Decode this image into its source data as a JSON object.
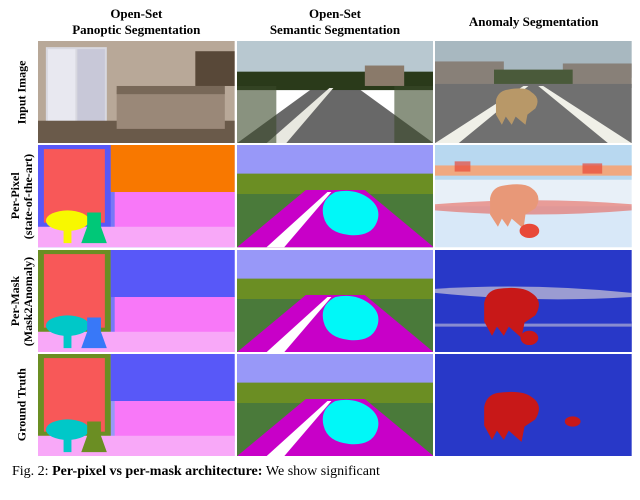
{
  "headers": {
    "cols": [
      "Open-Set\nPanoptic Segmentation",
      "Open-Set\nSemantic Segmentation",
      "Anomaly Segmentation"
    ],
    "rows": [
      "Input Image",
      "Per-Pixel\n(state-of-the-art)",
      "Per-Mask\n(Mask2Anomaly)",
      "Ground Truth"
    ]
  },
  "caption": {
    "prefix": "Fig. 2: ",
    "bold": "Per-pixel vs per-mask architecture: ",
    "rest": "We show significant"
  },
  "cells": {
    "r1c1": {
      "type": "photo-bedroom",
      "bg": "#8a7a6a",
      "window": "#d8d8e0",
      "bed": "#9a8878",
      "floor": "#6a5a4a",
      "wall": "#b8a898"
    },
    "r1c2": {
      "type": "photo-road",
      "sky": "#b8c8d0",
      "trees": "#2a3a1a",
      "road": "#686868",
      "line": "#e8e8e0",
      "building": "#8a7a6a"
    },
    "r1c3": {
      "type": "photo-road-cow",
      "sky": "#a8b8c0",
      "building": "#888078",
      "trees": "#4a5a3a",
      "road": "#707070",
      "cow": "#b89868",
      "line": "#f0f0e8"
    },
    "r2c1": {
      "type": "seg-bedroom",
      "bg": "#7878f8",
      "window": "#f85858",
      "bed": "#f878f8",
      "table": "#f8f800",
      "chair": "#00c878",
      "floor": "#f8a8f8",
      "wall": "#5858f8",
      "misc": "#f87800"
    },
    "r2c2": {
      "type": "seg-road",
      "sky": "#9898f8",
      "trees": "#6b8e23",
      "road": "#c800c8",
      "blob": "#00f8f8",
      "line": "#ffffff",
      "ground": "#4a7a3a"
    },
    "r2c3": {
      "type": "heatmap",
      "bg_cool": "#e8f0f8",
      "bg_mid": "#b8d8f0",
      "hot": "#e84838",
      "warm": "#f0a880",
      "cow_fill": "#e89878",
      "road": "#d8e8f8"
    },
    "r3c1": {
      "type": "seg-bedroom",
      "bg": "#7878f8",
      "window": "#f85858",
      "bed": "#f878f8",
      "table": "#00c8c8",
      "chair": "#3878f8",
      "floor": "#f8a8f8",
      "wall": "#6b8e23",
      "misc": "#5858f8"
    },
    "r3c2": {
      "type": "seg-road",
      "sky": "#9898f8",
      "trees": "#6b8e23",
      "road": "#c800c8",
      "blob": "#00f8f8",
      "line": "#ffffff",
      "ground": "#4a7a3a"
    },
    "r3c3": {
      "type": "anomaly-clean",
      "bg": "#2838c8",
      "cow": "#c81818",
      "ground": "#2838c8",
      "edges": "#e8e0d8"
    },
    "r4c1": {
      "type": "seg-bedroom",
      "bg": "#9898f8",
      "window": "#f85858",
      "bed": "#f878f8",
      "table": "#00c8c8",
      "chair": "#6b8e23",
      "floor": "#f8a8f8",
      "wall": "#6b8e23",
      "misc": "#5858f8"
    },
    "r4c2": {
      "type": "seg-road",
      "sky": "#9898f8",
      "trees": "#6b8e23",
      "road": "#c800c8",
      "blob": "#00f8f8",
      "line": "#ffffff",
      "ground": "#4a7a3a"
    },
    "r4c3": {
      "type": "anomaly-gt",
      "bg": "#2838c8",
      "cow": "#c81818",
      "spot": "#c81818"
    }
  }
}
